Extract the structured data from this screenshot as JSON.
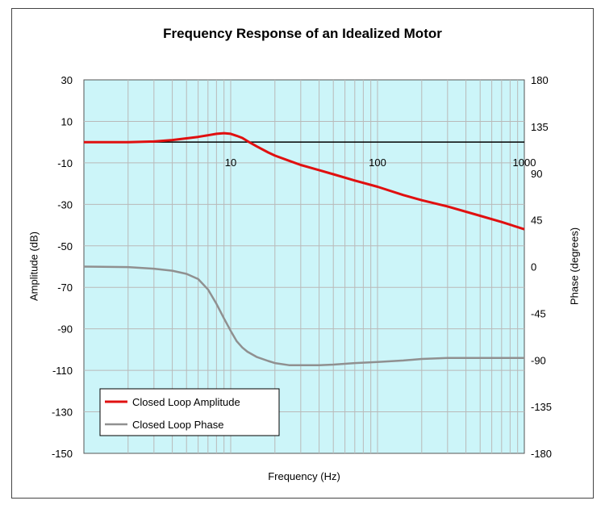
{
  "chart_data": {
    "type": "line",
    "title": "Frequency Response of an Idealized Motor",
    "xlabel": "Frequency (Hz)",
    "ylabel_left": "Amplitude (dB)",
    "ylabel_right": "Phase (degrees)",
    "x_scale": "log",
    "xlim": [
      1,
      1000
    ],
    "x_tick_labels": [
      "10",
      "100",
      "1000"
    ],
    "ylim_left": [
      -150,
      30
    ],
    "ylim_right": [
      -180,
      180
    ],
    "y_left_ticks": [
      "30",
      "10",
      "-10",
      "-30",
      "-50",
      "-70",
      "-90",
      "-110",
      "-130",
      "-150"
    ],
    "y_right_ticks": [
      "180",
      "135",
      "90",
      "45",
      "0",
      "-45",
      "-90",
      "-135",
      "-180"
    ],
    "grid": true,
    "legend_position": "bottom-left",
    "colors": {
      "plot_background": "#ccf5f9",
      "gridline": "#b9b9b9",
      "amplitude": "#e01010",
      "phase": "#909090"
    },
    "series": [
      {
        "name": "Closed Loop Amplitude",
        "axis": "left",
        "x": [
          1,
          2,
          3,
          4,
          5,
          6,
          7,
          8,
          9,
          10,
          11,
          12,
          13,
          15,
          18,
          20,
          25,
          30,
          40,
          50,
          70,
          100,
          150,
          200,
          300,
          500,
          700,
          1000
        ],
        "y": [
          0,
          0,
          0.3,
          1,
          1.8,
          2.5,
          3.3,
          4,
          4.3,
          4,
          3,
          2,
          0.5,
          -2,
          -5,
          -6.5,
          -9,
          -11,
          -13.5,
          -15.5,
          -18.5,
          -21.5,
          -25.5,
          -28,
          -31,
          -35.5,
          -38.5,
          -42
        ]
      },
      {
        "name": "Closed Loop Phase",
        "axis": "right",
        "x": [
          1,
          2,
          3,
          4,
          5,
          6,
          7,
          8,
          9,
          10,
          11,
          12,
          13,
          15,
          18,
          20,
          25,
          30,
          40,
          50,
          70,
          100,
          150,
          200,
          300,
          500,
          700,
          1000
        ],
        "y": [
          0,
          -0.5,
          -2,
          -4,
          -7,
          -12,
          -22,
          -36,
          -50,
          -62,
          -72,
          -78,
          -82,
          -87,
          -91,
          -93,
          -95,
          -95,
          -95,
          -94.5,
          -93,
          -92,
          -90.5,
          -89,
          -88,
          -88,
          -88,
          -88
        ]
      }
    ]
  }
}
